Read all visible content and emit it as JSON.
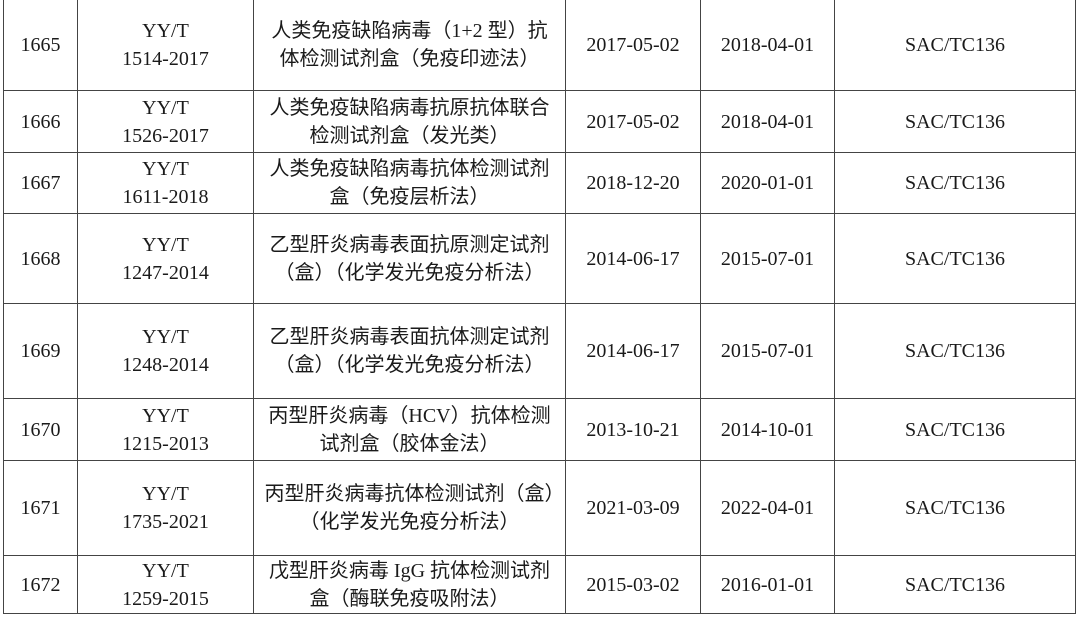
{
  "rows": [
    {
      "no": "1665",
      "code_l1": "YY/T",
      "code_l2": "1514-2017",
      "name": "人类免疫缺陷病毒（1+2 型）抗体检测试剂盒（免疫印迹法）",
      "issued": "2017-05-02",
      "effective": "2018-04-01",
      "committee": "SAC/TC136"
    },
    {
      "no": "1666",
      "code_l1": "YY/T",
      "code_l2": "1526-2017",
      "name": "人类免疫缺陷病毒抗原抗体联合检测试剂盒（发光类）",
      "issued": "2017-05-02",
      "effective": "2018-04-01",
      "committee": "SAC/TC136"
    },
    {
      "no": "1667",
      "code_l1": "YY/T",
      "code_l2": "1611-2018",
      "name": "人类免疫缺陷病毒抗体检测试剂盒（免疫层析法）",
      "issued": "2018-12-20",
      "effective": "2020-01-01",
      "committee": "SAC/TC136"
    },
    {
      "no": "1668",
      "code_l1": "YY/T",
      "code_l2": "1247-2014",
      "name": "乙型肝炎病毒表面抗原测定试剂（盒）（化学发光免疫分析法）",
      "issued": "2014-06-17",
      "effective": "2015-07-01",
      "committee": "SAC/TC136"
    },
    {
      "no": "1669",
      "code_l1": "YY/T",
      "code_l2": "1248-2014",
      "name": "乙型肝炎病毒表面抗体测定试剂（盒）（化学发光免疫分析法）",
      "issued": "2014-06-17",
      "effective": "2015-07-01",
      "committee": "SAC/TC136"
    },
    {
      "no": "1670",
      "code_l1": "YY/T",
      "code_l2": "1215-2013",
      "name": "丙型肝炎病毒（HCV）抗体检测试剂盒（胶体金法）",
      "issued": "2013-10-21",
      "effective": "2014-10-01",
      "committee": "SAC/TC136"
    },
    {
      "no": "1671",
      "code_l1": "YY/T",
      "code_l2": "1735-2021",
      "name": "丙型肝炎病毒抗体检测试剂（盒）（化学发光免疫分析法）",
      "issued": "2021-03-09",
      "effective": "2022-04-01",
      "committee": "SAC/TC136"
    },
    {
      "no": "1672",
      "code_l1": "YY/T",
      "code_l2": "1259-2015",
      "name": "戊型肝炎病毒 IgG 抗体检测试剂盒（酶联免疫吸附法）",
      "issued": "2015-03-02",
      "effective": "2016-01-01",
      "committee": "SAC/TC136"
    }
  ]
}
